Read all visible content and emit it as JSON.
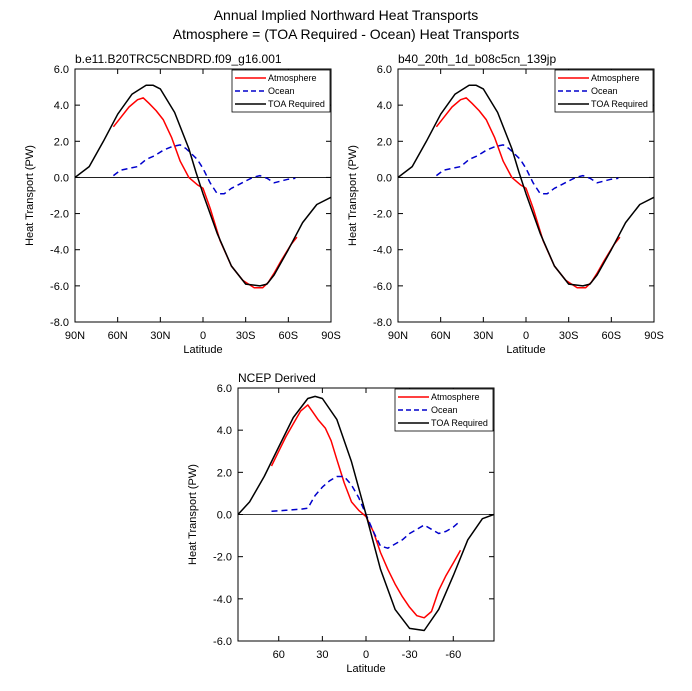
{
  "figure": {
    "title_line1": "Annual Implied Northward Heat Transports",
    "title_line2": "Atmosphere = (TOA Required - Ocean) Heat Transports"
  },
  "chart_data": [
    {
      "type": "line",
      "title": "b.e11.B20TRC5CNBDRD.f09_g16.001",
      "xlabel": "Latitude",
      "ylabel": "Heat Transport (PW)",
      "xlim": [
        90,
        -90
      ],
      "ylim": [
        -8,
        6
      ],
      "xticks": [
        90,
        60,
        30,
        0,
        -30,
        -60,
        -90
      ],
      "xtick_labels": [
        "90N",
        "60N",
        "30N",
        "0",
        "30S",
        "60S",
        "90S"
      ],
      "yticks": [
        -8,
        -6,
        -4,
        -2,
        0,
        2,
        4,
        6
      ],
      "ytick_labels": [
        "-8.0",
        "-6.0",
        "-4.0",
        "-2.0",
        "0.0",
        "2.0",
        "4.0",
        "6.0"
      ],
      "legend_position": "top-right",
      "series": [
        {
          "name": "Atmosphere",
          "color": "#ff0000",
          "dash": "solid",
          "x": [
            63,
            58,
            52,
            46,
            42,
            38,
            33,
            28,
            22,
            16,
            10,
            4,
            0,
            -5,
            -12,
            -20,
            -28,
            -36,
            -42,
            -46,
            -50,
            -55,
            -62,
            -66
          ],
          "y": [
            2.8,
            3.3,
            3.9,
            4.3,
            4.4,
            4.1,
            3.7,
            3.2,
            2.2,
            0.9,
            0.0,
            -0.4,
            -0.6,
            -1.7,
            -3.5,
            -4.9,
            -5.7,
            -6.1,
            -6.1,
            -5.8,
            -5.3,
            -4.6,
            -3.7,
            -3.3
          ]
        },
        {
          "name": "Ocean",
          "color": "#0000cc",
          "dash": "dashed",
          "x": [
            63,
            58,
            52,
            46,
            40,
            34,
            28,
            22,
            16,
            12,
            8,
            4,
            0,
            -5,
            -10,
            -15,
            -20,
            -25,
            -30,
            -35,
            -40,
            -45,
            -50,
            -55,
            -60,
            -65
          ],
          "y": [
            0.1,
            0.4,
            0.5,
            0.6,
            1.0,
            1.2,
            1.5,
            1.7,
            1.8,
            1.6,
            1.3,
            1.0,
            0.5,
            -0.3,
            -0.9,
            -0.9,
            -0.6,
            -0.4,
            -0.2,
            0.0,
            0.1,
            -0.05,
            -0.3,
            -0.2,
            -0.1,
            -0.05
          ]
        },
        {
          "name": "TOA Required",
          "color": "#000000",
          "dash": "solid",
          "x": [
            90,
            80,
            70,
            60,
            50,
            40,
            35,
            30,
            20,
            10,
            5,
            0,
            -10,
            -20,
            -30,
            -40,
            -45,
            -50,
            -60,
            -70,
            -80,
            -90
          ],
          "y": [
            0.0,
            0.6,
            2.0,
            3.5,
            4.6,
            5.1,
            5.1,
            4.9,
            3.6,
            1.6,
            0.3,
            -0.9,
            -3.1,
            -4.9,
            -5.9,
            -6.0,
            -5.9,
            -5.4,
            -4.0,
            -2.5,
            -1.5,
            -1.1
          ]
        }
      ]
    },
    {
      "type": "line",
      "title": "b40_20th_1d_b08c5cn_139jp",
      "xlabel": "Latitude",
      "ylabel": "Heat Transport (PW)",
      "xlim": [
        90,
        -90
      ],
      "ylim": [
        -8,
        6
      ],
      "xticks": [
        90,
        60,
        30,
        0,
        -30,
        -60,
        -90
      ],
      "xtick_labels": [
        "90N",
        "60N",
        "30N",
        "0",
        "30S",
        "60S",
        "90S"
      ],
      "yticks": [
        -8,
        -6,
        -4,
        -2,
        0,
        2,
        4,
        6
      ],
      "ytick_labels": [
        "-8.0",
        "-6.0",
        "-4.0",
        "-2.0",
        "0.0",
        "2.0",
        "4.0",
        "6.0"
      ],
      "legend_position": "top-right",
      "series": [
        {
          "name": "Atmosphere",
          "color": "#ff0000",
          "dash": "solid",
          "x": [
            63,
            58,
            52,
            46,
            42,
            38,
            33,
            28,
            22,
            16,
            10,
            4,
            0,
            -5,
            -12,
            -20,
            -28,
            -36,
            -42,
            -46,
            -50,
            -55,
            -62,
            -66
          ],
          "y": [
            2.8,
            3.3,
            3.9,
            4.3,
            4.4,
            4.1,
            3.7,
            3.2,
            2.2,
            0.9,
            0.0,
            -0.4,
            -0.6,
            -1.7,
            -3.5,
            -4.9,
            -5.7,
            -6.1,
            -6.1,
            -5.8,
            -5.3,
            -4.6,
            -3.7,
            -3.3
          ]
        },
        {
          "name": "Ocean",
          "color": "#0000cc",
          "dash": "dashed",
          "x": [
            63,
            58,
            52,
            46,
            40,
            34,
            28,
            22,
            16,
            12,
            8,
            4,
            0,
            -5,
            -10,
            -15,
            -20,
            -25,
            -30,
            -35,
            -40,
            -45,
            -50,
            -55,
            -60,
            -65
          ],
          "y": [
            0.1,
            0.4,
            0.5,
            0.6,
            1.0,
            1.2,
            1.5,
            1.7,
            1.8,
            1.6,
            1.3,
            1.0,
            0.5,
            -0.3,
            -0.9,
            -0.9,
            -0.6,
            -0.4,
            -0.2,
            0.0,
            0.1,
            -0.05,
            -0.3,
            -0.2,
            -0.1,
            -0.05
          ]
        },
        {
          "name": "TOA Required",
          "color": "#000000",
          "dash": "solid",
          "x": [
            90,
            80,
            70,
            60,
            50,
            40,
            35,
            30,
            20,
            10,
            5,
            0,
            -10,
            -20,
            -30,
            -40,
            -45,
            -50,
            -60,
            -70,
            -80,
            -90
          ],
          "y": [
            0.0,
            0.6,
            2.0,
            3.5,
            4.6,
            5.1,
            5.1,
            4.9,
            3.6,
            1.6,
            0.3,
            -0.9,
            -3.1,
            -4.9,
            -5.9,
            -6.0,
            -5.9,
            -5.4,
            -4.0,
            -2.5,
            -1.5,
            -1.1
          ]
        }
      ]
    },
    {
      "type": "line",
      "title": "NCEP Derived",
      "xlabel": "Latitude",
      "ylabel": "Heat Transport (PW)",
      "xlim": [
        88,
        -88
      ],
      "ylim": [
        -6,
        6
      ],
      "xticks": [
        60,
        30,
        0,
        -30,
        -60
      ],
      "xtick_labels": [
        "60",
        "30",
        "0",
        "-30",
        "-60"
      ],
      "yticks": [
        -6,
        -4,
        -2,
        0,
        2,
        4,
        6
      ],
      "ytick_labels": [
        "-6.0",
        "-4.0",
        "-2.0",
        "0.0",
        "2.0",
        "4.0",
        "6.0"
      ],
      "legend_position": "top-right",
      "series": [
        {
          "name": "Atmosphere",
          "color": "#ff0000",
          "dash": "solid",
          "x": [
            65,
            60,
            55,
            50,
            45,
            40,
            37,
            33,
            28,
            24,
            20,
            15,
            10,
            5,
            0,
            -5,
            -10,
            -15,
            -20,
            -25,
            -30,
            -35,
            -40,
            -45,
            -50,
            -55,
            -60,
            -65
          ],
          "y": [
            2.3,
            3.0,
            3.7,
            4.3,
            4.9,
            5.2,
            4.9,
            4.5,
            4.1,
            3.5,
            2.6,
            1.5,
            0.6,
            0.2,
            -0.1,
            -0.8,
            -1.8,
            -2.6,
            -3.3,
            -3.9,
            -4.4,
            -4.8,
            -4.9,
            -4.6,
            -3.6,
            -2.9,
            -2.3,
            -1.7
          ]
        },
        {
          "name": "Ocean",
          "color": "#0000cc",
          "dash": "dashed",
          "x": [
            65,
            55,
            45,
            40,
            35,
            30,
            25,
            20,
            15,
            10,
            5,
            0,
            -5,
            -10,
            -15,
            -20,
            -25,
            -30,
            -35,
            -40,
            -45,
            -50,
            -55,
            -60,
            -65
          ],
          "y": [
            0.15,
            0.2,
            0.25,
            0.3,
            0.9,
            1.3,
            1.6,
            1.8,
            1.8,
            1.4,
            0.8,
            0.0,
            -0.8,
            -1.5,
            -1.6,
            -1.4,
            -1.2,
            -0.9,
            -0.7,
            -0.5,
            -0.7,
            -0.9,
            -0.8,
            -0.6,
            -0.3
          ]
        },
        {
          "name": "TOA Required",
          "color": "#000000",
          "dash": "solid",
          "x": [
            88,
            80,
            70,
            60,
            50,
            40,
            35,
            30,
            20,
            10,
            0,
            -10,
            -20,
            -30,
            -40,
            -50,
            -60,
            -70,
            -80,
            -88
          ],
          "y": [
            0.0,
            0.6,
            1.8,
            3.2,
            4.6,
            5.5,
            5.6,
            5.5,
            4.5,
            2.5,
            0.0,
            -2.6,
            -4.5,
            -5.4,
            -5.5,
            -4.5,
            -2.9,
            -1.2,
            -0.2,
            0.0
          ]
        }
      ]
    }
  ]
}
